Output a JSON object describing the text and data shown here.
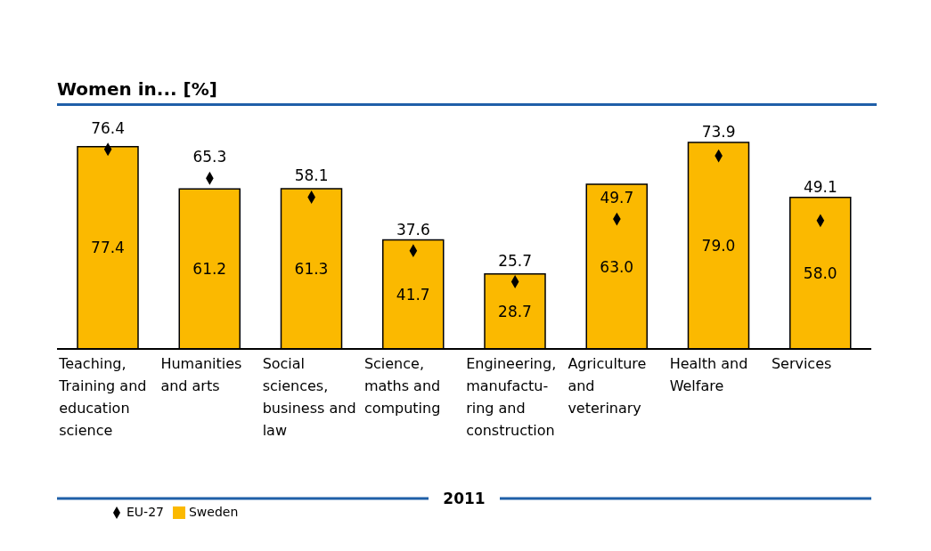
{
  "chart_data": {
    "type": "bar",
    "title": "Women in... [%]",
    "xlabel": "2011",
    "categories": [
      "Teaching, Training and education science",
      "Humanities and arts",
      "Social sciences, business and law",
      "Science, maths and computing",
      "Engineering, manufactu-ring and construction",
      "Agriculture and veterinary",
      "Health and Welfare",
      "Services"
    ],
    "series": [
      {
        "name": "EU-27",
        "type": "scatter",
        "marker": "diamond",
        "color": "#000000",
        "values": [
          76.4,
          65.3,
          58.1,
          37.6,
          25.7,
          49.7,
          73.9,
          49.1
        ],
        "value_labels": [
          "76.4",
          "65.3",
          "58.1",
          "37.6",
          "25.7",
          "49.7",
          "73.9",
          "49.1"
        ]
      },
      {
        "name": "Sweden",
        "color": "#fbb900",
        "values": [
          77.4,
          61.2,
          61.3,
          41.7,
          28.7,
          63.0,
          79.0,
          58.0
        ],
        "value_labels": [
          "77.4",
          "61.2",
          "61.3",
          "41.7",
          "28.7",
          "63.0",
          "79.0",
          "58.0"
        ]
      }
    ],
    "legend": "bottom left"
  }
}
